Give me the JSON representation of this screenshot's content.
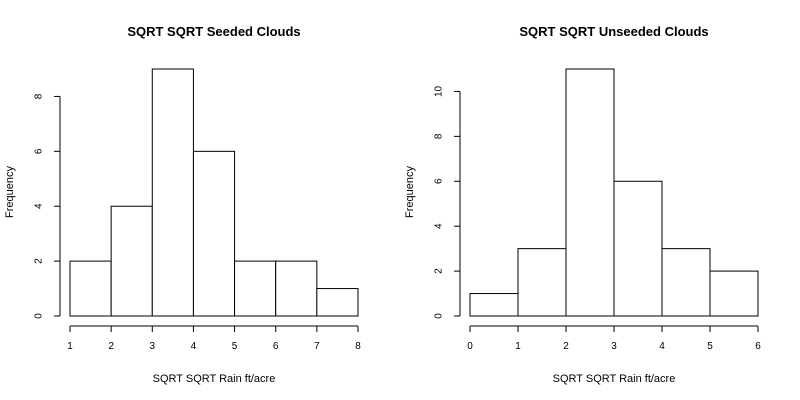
{
  "chart_data": [
    {
      "type": "histogram",
      "title": "SQRT SQRT Seeded Clouds",
      "xlabel": "SQRT SQRT Rain ft/acre",
      "ylabel": "Frequency",
      "bins": [
        1,
        2,
        3,
        4,
        5,
        6,
        7,
        8
      ],
      "counts": [
        2,
        4,
        9,
        6,
        2,
        2,
        1
      ],
      "xticks": [
        1,
        2,
        3,
        4,
        5,
        6,
        7,
        8
      ],
      "yticks": [
        0,
        2,
        4,
        6,
        8
      ],
      "xlim": [
        1,
        8
      ],
      "ylim": [
        0,
        9
      ],
      "grid": false
    },
    {
      "type": "histogram",
      "title": "SQRT SQRT Unseeded Clouds",
      "xlabel": "SQRT SQRT Rain ft/acre",
      "ylabel": "Frequency",
      "bins": [
        0,
        1,
        2,
        3,
        4,
        5,
        6
      ],
      "counts": [
        1,
        3,
        11,
        6,
        3,
        2
      ],
      "xticks": [
        0,
        1,
        2,
        3,
        4,
        5,
        6
      ],
      "yticks": [
        0,
        2,
        4,
        6,
        8,
        10
      ],
      "xlim": [
        0,
        6
      ],
      "ylim": [
        0,
        11
      ],
      "grid": false
    }
  ]
}
